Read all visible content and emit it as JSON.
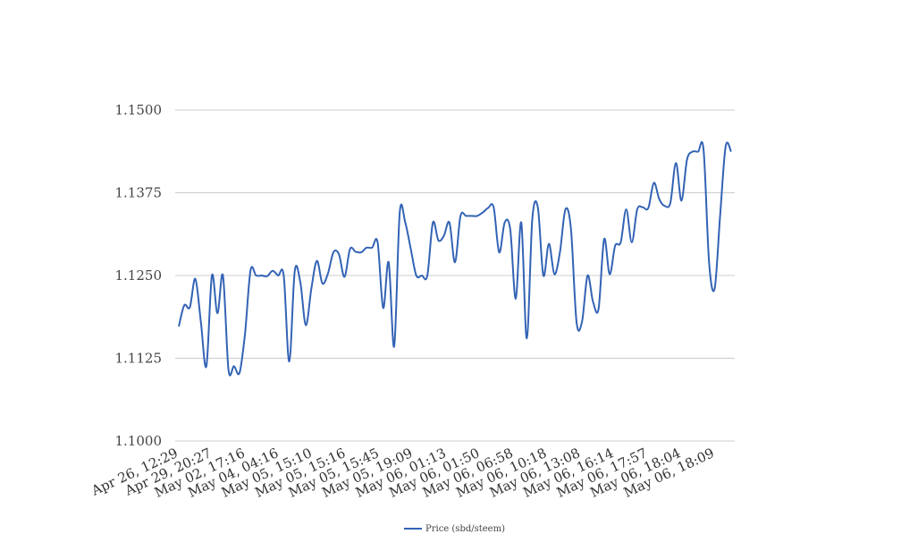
{
  "chart_data": {
    "type": "line",
    "title": "",
    "xlabel": "",
    "ylabel": "",
    "ylim": [
      1.1,
      1.15
    ],
    "yticks": [
      "1.1000",
      "1.1125",
      "1.1250",
      "1.1375",
      "1.1500"
    ],
    "grid": true,
    "legend_position": "bottom",
    "colors": {
      "series": "#3363b5",
      "grid": "#cccccc",
      "text": "#444444"
    },
    "x_tick_labels": [
      "Apr 26, 12:29",
      "Apr 29, 20:27",
      "May 02, 17:16",
      "May 04, 04:16",
      "May 05, 15:10",
      "May 05, 15:16",
      "May 05, 15:45",
      "May 05, 19:09",
      "May 06, 01:13",
      "May 06, 01:50",
      "May 06, 06:58",
      "May 06, 10:18",
      "May 06, 13:08",
      "May 06, 16:14",
      "May 06, 17:57",
      "May 06, 18:04",
      "May 06, 18:09"
    ],
    "series": [
      {
        "name": "Price (sbd/steem)",
        "values": [
          1.1173,
          1.1205,
          1.1202,
          1.1245,
          1.118,
          1.1113,
          1.125,
          1.1193,
          1.125,
          1.1108,
          1.1113,
          1.1103,
          1.1163,
          1.1258,
          1.125,
          1.125,
          1.1249,
          1.1257,
          1.125,
          1.125,
          1.112,
          1.1257,
          1.124,
          1.1175,
          1.123,
          1.1272,
          1.1238,
          1.1253,
          1.1285,
          1.1282,
          1.1248,
          1.129,
          1.1286,
          1.1285,
          1.1292,
          1.1292,
          1.13,
          1.1201,
          1.127,
          1.1143,
          1.1345,
          1.133,
          1.129,
          1.125,
          1.125,
          1.125,
          1.133,
          1.1303,
          1.131,
          1.133,
          1.127,
          1.134,
          1.134,
          1.134,
          1.134,
          1.1345,
          1.1352,
          1.1353,
          1.1285,
          1.133,
          1.132,
          1.1215,
          1.133,
          1.1155,
          1.1335,
          1.1353,
          1.125,
          1.1298,
          1.1252,
          1.1285,
          1.135,
          1.132,
          1.118,
          1.118,
          1.125,
          1.121,
          1.12,
          1.1305,
          1.1252,
          1.1295,
          1.13,
          1.135,
          1.13,
          1.135,
          1.1353,
          1.1352,
          1.139,
          1.1365,
          1.1355,
          1.136,
          1.142,
          1.1363,
          1.1425,
          1.1437,
          1.1437,
          1.144,
          1.127,
          1.123,
          1.134,
          1.1445,
          1.1437
        ]
      }
    ]
  }
}
